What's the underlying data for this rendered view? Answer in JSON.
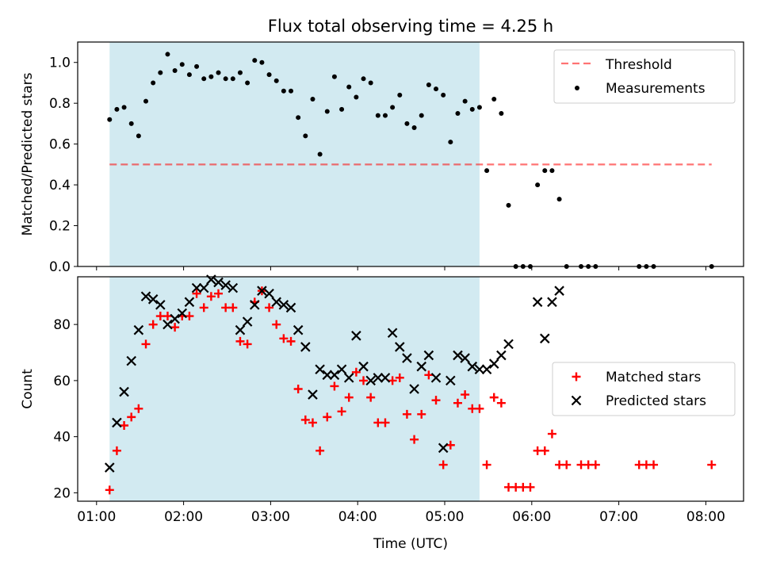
{
  "title": "Flux total observing time = 4.25 h",
  "colors": {
    "shade": "#add8e6",
    "threshold": "#ff0000",
    "measurement": "#000000",
    "matched": "#ff0000",
    "predicted": "#000000"
  },
  "chart_data": [
    {
      "type": "scatter",
      "ylabel": "Matched/Predicted stars",
      "ylim": [
        0,
        1.1
      ],
      "yticks": [
        "0.0",
        "0.2",
        "0.4",
        "0.6",
        "0.8",
        "1.0"
      ],
      "shaded_region": {
        "x": [
          "01:09",
          "05:24"
        ]
      },
      "threshold": {
        "name": "Threshold",
        "y": 0.5,
        "x": [
          "01:09",
          "08:04"
        ],
        "style": "dashed"
      },
      "legend": [
        "Threshold",
        "Measurements"
      ],
      "legend_placement": "upper right",
      "series": [
        {
          "name": "Measurements",
          "points": [
            [
              "01:09",
              0.72
            ],
            [
              "01:14",
              0.77
            ],
            [
              "01:19",
              0.78
            ],
            [
              "01:24",
              0.7
            ],
            [
              "01:29",
              0.64
            ],
            [
              "01:34",
              0.81
            ],
            [
              "01:39",
              0.9
            ],
            [
              "01:44",
              0.95
            ],
            [
              "01:49",
              1.04
            ],
            [
              "01:54",
              0.96
            ],
            [
              "01:59",
              0.99
            ],
            [
              "02:04",
              0.94
            ],
            [
              "02:09",
              0.98
            ],
            [
              "02:14",
              0.92
            ],
            [
              "02:19",
              0.93
            ],
            [
              "02:24",
              0.95
            ],
            [
              "02:29",
              0.92
            ],
            [
              "02:34",
              0.92
            ],
            [
              "02:39",
              0.95
            ],
            [
              "02:44",
              0.9
            ],
            [
              "02:49",
              1.01
            ],
            [
              "02:54",
              1.0
            ],
            [
              "02:59",
              0.94
            ],
            [
              "03:04",
              0.91
            ],
            [
              "03:09",
              0.86
            ],
            [
              "03:14",
              0.86
            ],
            [
              "03:19",
              0.73
            ],
            [
              "03:24",
              0.64
            ],
            [
              "03:29",
              0.82
            ],
            [
              "03:34",
              0.55
            ],
            [
              "03:39",
              0.76
            ],
            [
              "03:44",
              0.93
            ],
            [
              "03:49",
              0.77
            ],
            [
              "03:54",
              0.88
            ],
            [
              "03:59",
              0.83
            ],
            [
              "04:04",
              0.92
            ],
            [
              "04:09",
              0.9
            ],
            [
              "04:14",
              0.74
            ],
            [
              "04:19",
              0.74
            ],
            [
              "04:24",
              0.78
            ],
            [
              "04:29",
              0.84
            ],
            [
              "04:34",
              0.7
            ],
            [
              "04:39",
              0.68
            ],
            [
              "04:44",
              0.74
            ],
            [
              "04:49",
              0.89
            ],
            [
              "04:54",
              0.87
            ],
            [
              "04:59",
              0.84
            ],
            [
              "05:04",
              0.61
            ],
            [
              "05:09",
              0.75
            ],
            [
              "05:14",
              0.81
            ],
            [
              "05:19",
              0.77
            ],
            [
              "05:24",
              0.78
            ],
            [
              "05:29",
              0.47
            ],
            [
              "05:34",
              0.82
            ],
            [
              "05:39",
              0.75
            ],
            [
              "05:44",
              0.3
            ],
            [
              "05:49",
              0.0
            ],
            [
              "05:54",
              0.0
            ],
            [
              "05:59",
              0.0
            ],
            [
              "06:04",
              0.4
            ],
            [
              "06:09",
              0.47
            ],
            [
              "06:14",
              0.47
            ],
            [
              "06:19",
              0.33
            ],
            [
              "06:24",
              0.0
            ],
            [
              "06:34",
              0.0
            ],
            [
              "06:39",
              0.0
            ],
            [
              "06:44",
              0.0
            ],
            [
              "07:14",
              0.0
            ],
            [
              "07:19",
              0.0
            ],
            [
              "07:24",
              0.0
            ],
            [
              "08:04",
              0.0
            ]
          ]
        }
      ]
    },
    {
      "type": "scatter",
      "xlabel": "Time (UTC)",
      "ylabel": "Count",
      "ylim": [
        17,
        97
      ],
      "yticks": [
        "20",
        "40",
        "60",
        "80"
      ],
      "xticks": [
        "01:00",
        "02:00",
        "03:00",
        "04:00",
        "05:00",
        "06:00",
        "07:00",
        "08:00"
      ],
      "xlim": [
        "00:47",
        "08:26"
      ],
      "shaded_region": {
        "x": [
          "01:09",
          "05:24"
        ]
      },
      "legend": [
        "Matched stars",
        "Predicted stars"
      ],
      "legend_placement": "center right",
      "series": [
        {
          "name": "Matched stars",
          "marker": "+",
          "points": [
            [
              "01:09",
              21
            ],
            [
              "01:14",
              35
            ],
            [
              "01:19",
              44
            ],
            [
              "01:24",
              47
            ],
            [
              "01:29",
              50
            ],
            [
              "01:34",
              73
            ],
            [
              "01:39",
              80
            ],
            [
              "01:44",
              83
            ],
            [
              "01:49",
              83
            ],
            [
              "01:54",
              79
            ],
            [
              "01:59",
              83
            ],
            [
              "02:04",
              83
            ],
            [
              "02:09",
              91
            ],
            [
              "02:14",
              86
            ],
            [
              "02:19",
              90
            ],
            [
              "02:24",
              91
            ],
            [
              "02:29",
              86
            ],
            [
              "02:34",
              86
            ],
            [
              "02:39",
              74
            ],
            [
              "02:44",
              73
            ],
            [
              "02:49",
              88
            ],
            [
              "02:54",
              92
            ],
            [
              "02:59",
              86
            ],
            [
              "03:04",
              80
            ],
            [
              "03:09",
              75
            ],
            [
              "03:14",
              74
            ],
            [
              "03:19",
              57
            ],
            [
              "03:24",
              46
            ],
            [
              "03:29",
              45
            ],
            [
              "03:34",
              35
            ],
            [
              "03:39",
              47
            ],
            [
              "03:44",
              58
            ],
            [
              "03:49",
              49
            ],
            [
              "03:54",
              54
            ],
            [
              "03:59",
              63
            ],
            [
              "04:04",
              60
            ],
            [
              "04:09",
              54
            ],
            [
              "04:14",
              45
            ],
            [
              "04:19",
              45
            ],
            [
              "04:24",
              60
            ],
            [
              "04:29",
              61
            ],
            [
              "04:34",
              48
            ],
            [
              "04:39",
              39
            ],
            [
              "04:44",
              48
            ],
            [
              "04:49",
              62
            ],
            [
              "04:54",
              53
            ],
            [
              "04:59",
              30
            ],
            [
              "05:04",
              37
            ],
            [
              "05:09",
              52
            ],
            [
              "05:14",
              55
            ],
            [
              "05:19",
              50
            ],
            [
              "05:24",
              50
            ],
            [
              "05:29",
              30
            ],
            [
              "05:34",
              54
            ],
            [
              "05:39",
              52
            ],
            [
              "05:44",
              22
            ],
            [
              "05:49",
              22
            ],
            [
              "05:54",
              22
            ],
            [
              "05:59",
              22
            ],
            [
              "06:04",
              35
            ],
            [
              "06:09",
              35
            ],
            [
              "06:14",
              41
            ],
            [
              "06:19",
              30
            ],
            [
              "06:24",
              30
            ],
            [
              "06:34",
              30
            ],
            [
              "06:39",
              30
            ],
            [
              "06:44",
              30
            ],
            [
              "07:14",
              30
            ],
            [
              "07:19",
              30
            ],
            [
              "07:24",
              30
            ],
            [
              "08:04",
              30
            ]
          ]
        },
        {
          "name": "Predicted stars",
          "marker": "x",
          "points": [
            [
              "01:09",
              29
            ],
            [
              "01:14",
              45
            ],
            [
              "01:19",
              56
            ],
            [
              "01:24",
              67
            ],
            [
              "01:29",
              78
            ],
            [
              "01:34",
              90
            ],
            [
              "01:39",
              89
            ],
            [
              "01:44",
              87
            ],
            [
              "01:49",
              80
            ],
            [
              "01:54",
              82
            ],
            [
              "01:59",
              84
            ],
            [
              "02:04",
              88
            ],
            [
              "02:09",
              93
            ],
            [
              "02:14",
              93
            ],
            [
              "02:19",
              96
            ],
            [
              "02:24",
              95
            ],
            [
              "02:29",
              94
            ],
            [
              "02:34",
              93
            ],
            [
              "02:39",
              78
            ],
            [
              "02:44",
              81
            ],
            [
              "02:49",
              87
            ],
            [
              "02:54",
              92
            ],
            [
              "02:59",
              91
            ],
            [
              "03:04",
              88
            ],
            [
              "03:09",
              87
            ],
            [
              "03:14",
              86
            ],
            [
              "03:19",
              78
            ],
            [
              "03:24",
              72
            ],
            [
              "03:29",
              55
            ],
            [
              "03:34",
              64
            ],
            [
              "03:39",
              62
            ],
            [
              "03:44",
              62
            ],
            [
              "03:49",
              64
            ],
            [
              "03:54",
              61
            ],
            [
              "03:59",
              76
            ],
            [
              "04:04",
              65
            ],
            [
              "04:09",
              60
            ],
            [
              "04:14",
              61
            ],
            [
              "04:19",
              61
            ],
            [
              "04:24",
              77
            ],
            [
              "04:29",
              72
            ],
            [
              "04:34",
              68
            ],
            [
              "04:39",
              57
            ],
            [
              "04:44",
              65
            ],
            [
              "04:49",
              69
            ],
            [
              "04:54",
              61
            ],
            [
              "04:59",
              36
            ],
            [
              "05:04",
              60
            ],
            [
              "05:09",
              69
            ],
            [
              "05:14",
              68
            ],
            [
              "05:19",
              65
            ],
            [
              "05:24",
              64
            ],
            [
              "05:29",
              64
            ],
            [
              "05:34",
              66
            ],
            [
              "05:39",
              69
            ],
            [
              "05:44",
              73
            ],
            [
              "06:04",
              88
            ],
            [
              "06:09",
              75
            ],
            [
              "06:14",
              88
            ],
            [
              "06:19",
              92
            ]
          ]
        }
      ]
    }
  ]
}
